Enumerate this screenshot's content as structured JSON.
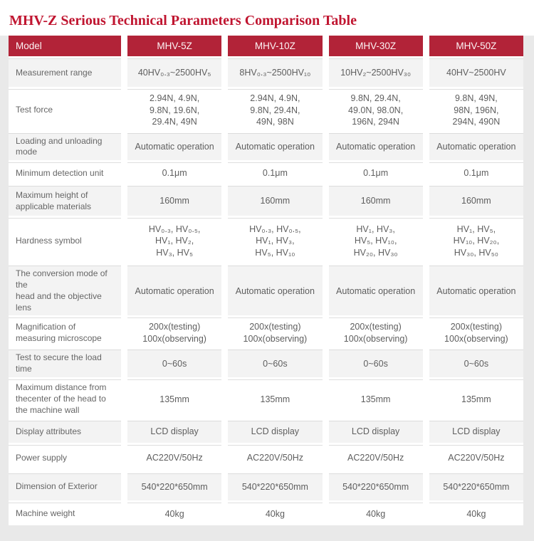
{
  "title": "MHV-Z Serious Technical Parameters Comparison Table",
  "colors": {
    "title_red": "#c01530",
    "header_red": "#b22338",
    "panel_gray": "#e9e9e9",
    "row_gray": "#f3f3f3",
    "text_gray": "#666666"
  },
  "table": {
    "header": {
      "model": "Model",
      "cols": [
        "MHV-5Z",
        "MHV-10Z",
        "MHV-30Z",
        "MHV-50Z"
      ]
    },
    "rows": [
      {
        "label": "Measurement range",
        "values": [
          "40HV₀.₃~2500HV₅",
          "8HV₀.₃~2500HV₁₀",
          "10HV₂~2500HV₃₀",
          "40HV~2500HV"
        ]
      },
      {
        "label": "Test force",
        "values": [
          "2.94N, 4.9N,\n9.8N, 19.6N,\n29.4N, 49N",
          "2.94N, 4.9N,\n9.8N, 29.4N,\n49N, 98N",
          "9.8N, 29.4N,\n49.0N, 98.0N,\n196N, 294N",
          "9.8N, 49N,\n98N, 196N,\n294N, 490N"
        ]
      },
      {
        "label": "Loading and unloading mode",
        "values": [
          "Automatic operation",
          "Automatic operation",
          "Automatic operation",
          "Automatic operation"
        ]
      },
      {
        "label": "Minimum detection unit",
        "values": [
          "0.1μm",
          "0.1μm",
          "0.1μm",
          "0.1μm"
        ]
      },
      {
        "label": "Maximum height of\napplicable materials",
        "values": [
          "160mm",
          "160mm",
          "160mm",
          "160mm"
        ]
      },
      {
        "label": "Hardness symbol",
        "values": [
          "HV₀.₃, HV₀.₅,\nHV₁, HV₂,\nHV₃, HV₅",
          "HV₀.₃, HV₀.₅,\nHV₁, HV₃,\nHV₅, HV₁₀",
          "HV₁, HV₃,\nHV₅, HV₁₀,\nHV₂₀, HV₃₀",
          "HV₁, HV₅,\nHV₁₀, HV₂₀,\nHV₃₀, HV₅₀"
        ]
      },
      {
        "label": "The conversion mode of the\nhead and the objective lens",
        "values": [
          "Automatic operation",
          "Automatic operation",
          "Automatic operation",
          "Automatic operation"
        ]
      },
      {
        "label": "Magnification of\nmeasuring microscope",
        "values": [
          "200x(testing)\n100x(observing)",
          "200x(testing)\n100x(observing)",
          "200x(testing)\n100x(observing)",
          "200x(testing)\n100x(observing)"
        ]
      },
      {
        "label": "Test to secure the load time",
        "values": [
          "0~60s",
          "0~60s",
          "0~60s",
          "0~60s"
        ]
      },
      {
        "label": "Maximum distance from\nthecenter of the head to\nthe machine wall",
        "values": [
          "135mm",
          "135mm",
          "135mm",
          "135mm"
        ]
      },
      {
        "label": "Display attributes",
        "values": [
          "LCD display",
          "LCD display",
          "LCD display",
          "LCD display"
        ]
      },
      {
        "label": "Power supply",
        "values": [
          "AC220V/50Hz",
          "AC220V/50Hz",
          "AC220V/50Hz",
          "AC220V/50Hz"
        ]
      },
      {
        "label": "Dimension of Exterior",
        "values": [
          "540*220*650mm",
          "540*220*650mm",
          "540*220*650mm",
          "540*220*650mm"
        ]
      },
      {
        "label": "Machine weight",
        "values": [
          "40kg",
          "40kg",
          "40kg",
          "40kg"
        ]
      }
    ]
  }
}
